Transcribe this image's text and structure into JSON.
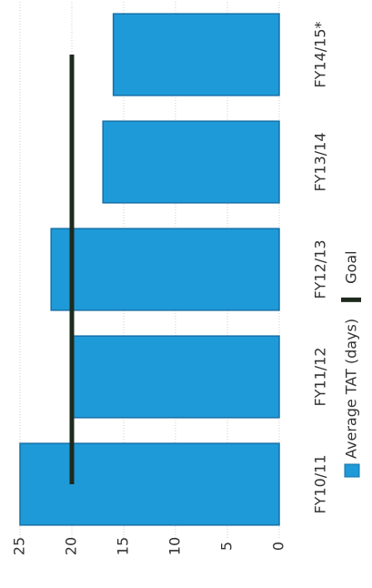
{
  "chart_data": {
    "type": "bar",
    "categories": [
      "FY10/11",
      "FY11/12",
      "FY12/13",
      "FY13/14",
      "FY14/15*"
    ],
    "series": [
      {
        "name": "Average TAT (days)",
        "color": "#1f9ad8",
        "values": [
          25,
          20,
          22,
          17,
          16
        ]
      },
      {
        "name": "Goal",
        "type": "line",
        "color": "#1e2a1e",
        "values": [
          20,
          20,
          20,
          20,
          20
        ]
      }
    ],
    "ylim": [
      0,
      25
    ],
    "yticks": [
      0,
      5,
      10,
      15,
      20,
      25
    ],
    "grid": true,
    "legend": "bottom"
  }
}
